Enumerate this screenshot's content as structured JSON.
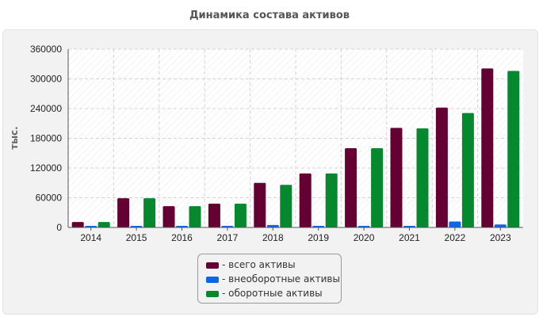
{
  "title": "Динамика состава активов",
  "chart_data": {
    "type": "bar",
    "categories": [
      "2014",
      "2015",
      "2016",
      "2017",
      "2018",
      "2019",
      "2020",
      "2021",
      "2022",
      "2023"
    ],
    "series": [
      {
        "name": "- всего активы",
        "color": "#650032",
        "values": [
          11000,
          59000,
          43000,
          48000,
          90000,
          109000,
          160000,
          201000,
          242000,
          321000
        ]
      },
      {
        "name": "- внеоборотные активы",
        "color": "#0d66e8",
        "values": [
          1000,
          1000,
          1000,
          1000,
          5000,
          1000,
          1000,
          1000,
          12000,
          6000
        ]
      },
      {
        "name": "- оборотные активы",
        "color": "#06892e",
        "values": [
          11000,
          59000,
          43000,
          48000,
          86000,
          109000,
          160000,
          200000,
          231000,
          316000
        ]
      }
    ],
    "ylabel": "тыс.",
    "ylim": [
      0,
      360000
    ],
    "yticks": [
      "0",
      "60000",
      "120000",
      "180000",
      "240000",
      "300000",
      "360000"
    ],
    "grid": true,
    "legend": "bottom"
  }
}
